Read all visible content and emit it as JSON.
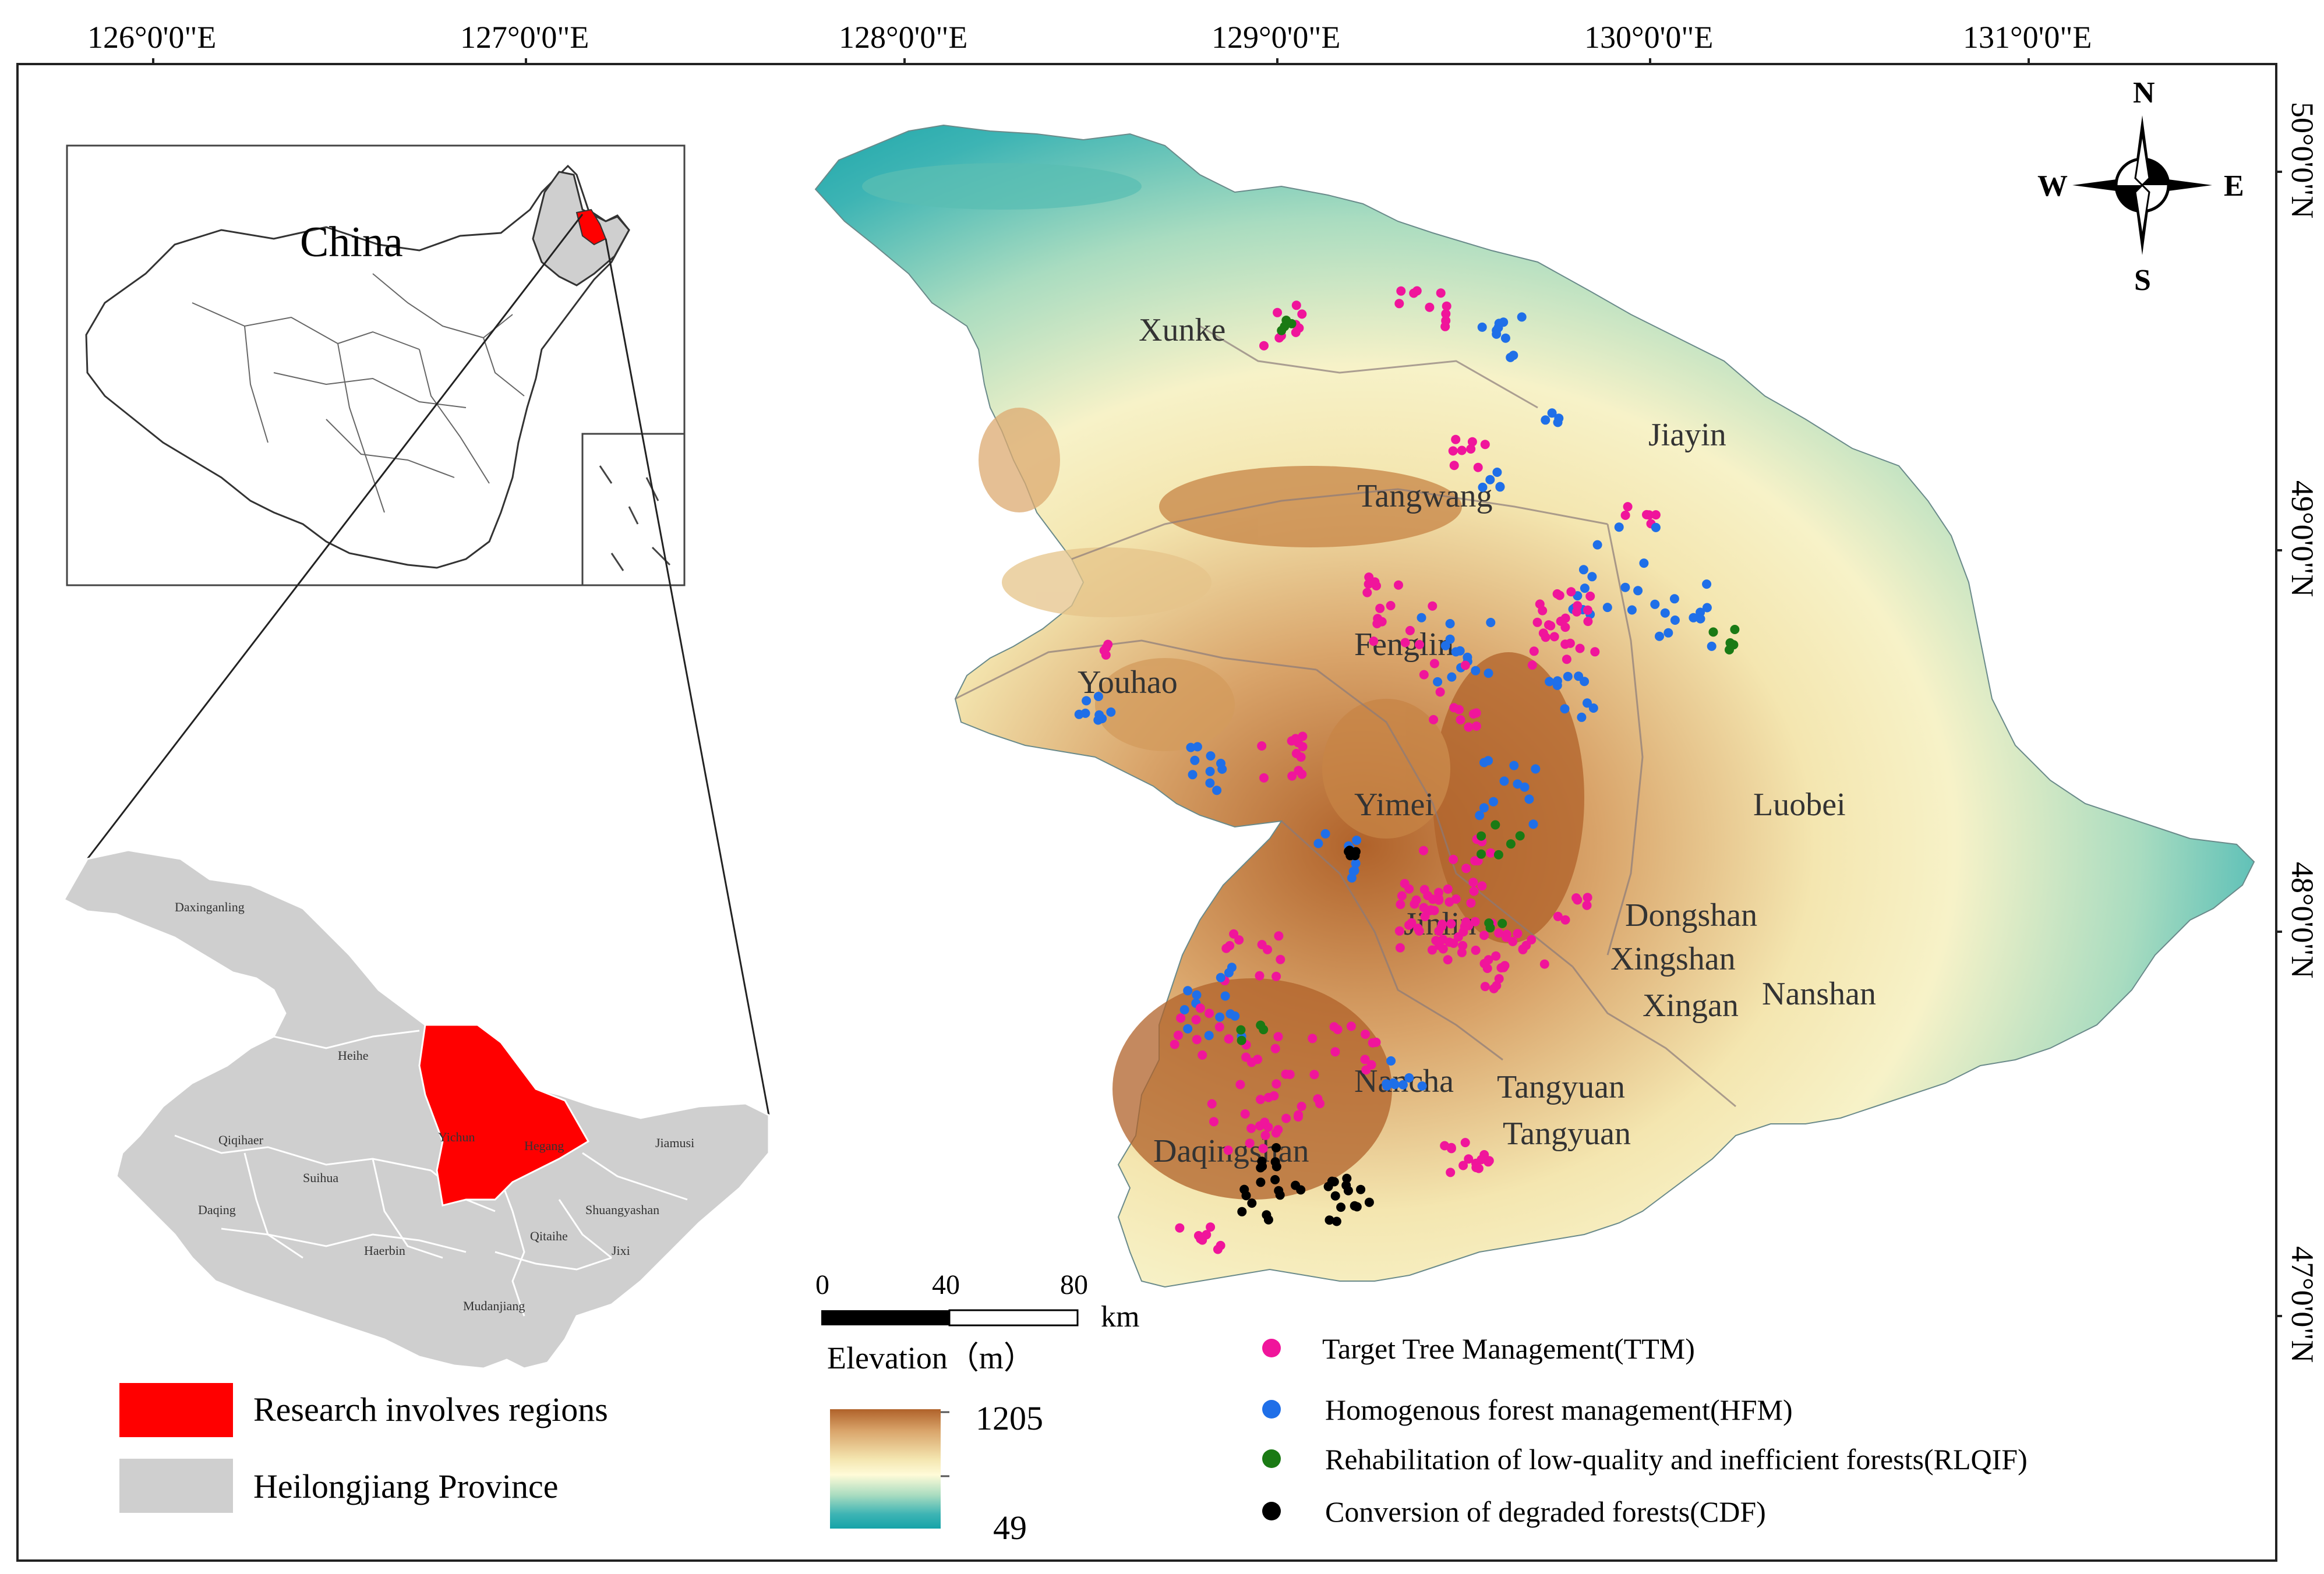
{
  "graticule": {
    "lon_labels": [
      "126°0'0\"E",
      "127°0'0\"E",
      "128°0'0\"E",
      "129°0'0\"E",
      "130°0'0\"E",
      "131°0'0\"E"
    ],
    "lat_labels": [
      "50°0'0\"N",
      "49°0'0\"N",
      "48°0'0\"N",
      "47°0'0\"N"
    ]
  },
  "inset_china": {
    "title": "China"
  },
  "inset_province": {
    "labels": [
      "Daxinganling",
      "Heihe",
      "Yichun",
      "Hegang",
      "Jiamusi",
      "Qiqihaer",
      "Suihua",
      "Daqing",
      "Shuangyashan",
      "Qitaihe",
      "Jixi",
      "Haerbin",
      "Mudanjiang"
    ]
  },
  "region_legend": {
    "research": {
      "label": "Research involves regions",
      "color": "#ff0000"
    },
    "province": {
      "label": "Heilongjiang Province",
      "color": "#cfcfcf"
    }
  },
  "map_places": [
    "Xunke",
    "Jiayin",
    "Tangwang",
    "Fenglin",
    "Youhao",
    "Yimei",
    "Luobei",
    "Jinlin",
    "Dongshan",
    "Xingshan",
    "Nanshan",
    "Xingan",
    "Nancha",
    "Tangyuan",
    "Tangyuan",
    "Daqingshan"
  ],
  "scale_bar": {
    "ticks": [
      "0",
      "40",
      "80"
    ],
    "unit": "km"
  },
  "elevation_legend": {
    "title": "Elevation（m）",
    "high": "1205",
    "low": "49",
    "colors": [
      "#b0622a",
      "#d9a46a",
      "#f4e6b0",
      "#fffbd8",
      "#a9dcc0",
      "#3db4b4",
      "#16a3a8"
    ]
  },
  "compass": {
    "n": "N",
    "s": "S",
    "e": "E",
    "w": "W"
  },
  "point_legend": [
    {
      "label": "Target Tree Management(TTM)",
      "color": "#f0159b"
    },
    {
      "label": "Homogenous forest management(HFM)",
      "color": "#1f6fe8"
    },
    {
      "label": "Rehabilitation of low-quality and inefficient forests(RLQIF)",
      "color": "#1a7a14"
    },
    {
      "label": "Conversion of degraded forests(CDF)",
      "color": "#000000"
    }
  ]
}
